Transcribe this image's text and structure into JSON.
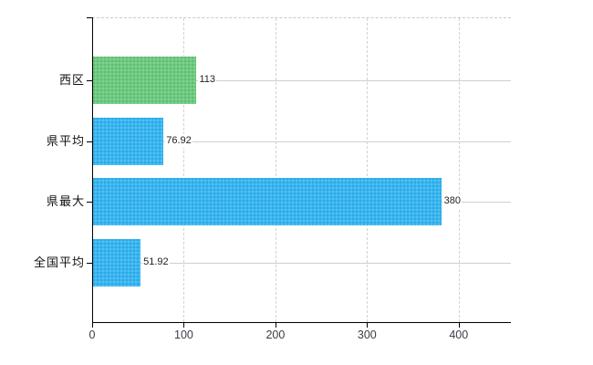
{
  "chart_data": {
    "type": "bar",
    "orientation": "horizontal",
    "title": "",
    "xlabel": "",
    "ylabel": "",
    "categories": [
      "西区",
      "県平均",
      "県最大",
      "全国平均"
    ],
    "values": [
      113,
      76.92,
      380,
      51.92
    ],
    "value_labels": [
      "113",
      "76.92",
      "380",
      "51.92"
    ],
    "series": [
      {
        "name": "",
        "values": [
          113,
          76.92,
          380,
          51.92
        ]
      }
    ],
    "bar_colors": [
      "#6fcb81",
      "#39b4ef",
      "#39b4ef",
      "#39b4ef"
    ],
    "x_ticks": [
      0,
      100,
      200,
      300,
      400
    ],
    "x_tick_labels": [
      "0",
      "100",
      "200",
      "300",
      "400"
    ],
    "xlim": [
      0,
      457
    ],
    "grid": true,
    "legend": "none",
    "colors": {
      "green_bar": "#6fcb81",
      "blue_bar": "#39b4ef",
      "h_gridline": "#cbd3c7",
      "v_gridline": "#d2d2d2",
      "axis": "#000000",
      "background": "#ffffff"
    }
  }
}
